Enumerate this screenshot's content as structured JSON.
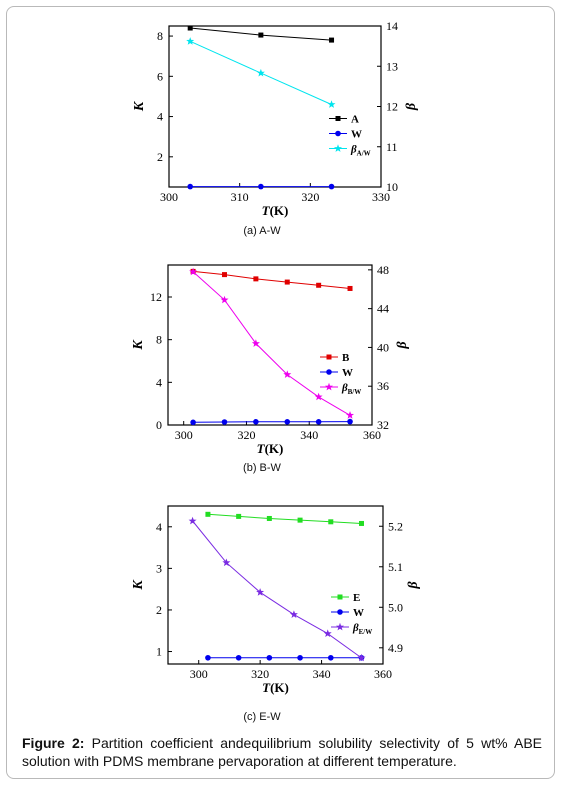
{
  "chart_data": [
    {
      "type": "line",
      "x": [
        303,
        313,
        323
      ],
      "xlabel_italic": "T",
      "xlabel_unit": "(K)",
      "ylabel_left": "K",
      "ylabel_right": "β",
      "xlim": [
        300,
        330
      ],
      "xticks": [
        "300",
        "310",
        "320",
        "330"
      ],
      "ylim_left": [
        0.5,
        8.5
      ],
      "yticks_left": [
        "2",
        "4",
        "6",
        "8"
      ],
      "ylim_right": [
        10,
        14
      ],
      "yticks_right": [
        "10",
        "11",
        "12",
        "13",
        "14"
      ],
      "series": [
        {
          "name": "A",
          "axis": "left",
          "color": "#000000",
          "marker": "square",
          "values": [
            8.4,
            8.05,
            7.8
          ]
        },
        {
          "name": "W",
          "axis": "left",
          "color": "#0000ee",
          "marker": "circle",
          "values": [
            0.52,
            0.52,
            0.52
          ]
        },
        {
          "name": "β",
          "name_sub": "A/W",
          "axis": "right",
          "color": "#00e5ee",
          "marker": "star",
          "values": [
            13.62,
            12.83,
            12.05
          ]
        }
      ],
      "subtitle": "(a) A-W"
    },
    {
      "type": "line",
      "x": [
        303,
        313,
        323,
        333,
        343,
        353
      ],
      "xlabel_italic": "T",
      "xlabel_unit": "(K)",
      "ylabel_left": "K",
      "ylabel_right": "β",
      "xlim": [
        295,
        360
      ],
      "xticks": [
        "300",
        "320",
        "340",
        "360"
      ],
      "ylim_left": [
        0,
        15
      ],
      "yticks_left": [
        "0",
        "4",
        "8",
        "12"
      ],
      "ylim_right": [
        32,
        48.5
      ],
      "yticks_right": [
        "32",
        "36",
        "40",
        "44",
        "48"
      ],
      "series": [
        {
          "name": "B",
          "axis": "left",
          "color": "#e00000",
          "marker": "square",
          "values": [
            14.4,
            14.1,
            13.7,
            13.4,
            13.1,
            12.8
          ]
        },
        {
          "name": "W",
          "axis": "left",
          "color": "#0000ee",
          "marker": "circle",
          "values": [
            0.25,
            0.28,
            0.3,
            0.3,
            0.3,
            0.32
          ]
        },
        {
          "name": "β",
          "name_sub": "B/W",
          "axis": "right",
          "color": "#ee00ee",
          "marker": "star",
          "values": [
            47.8,
            44.9,
            40.4,
            37.2,
            34.9,
            33.0
          ]
        }
      ],
      "subtitle": "(b) B-W"
    },
    {
      "type": "line",
      "x": [
        298,
        303,
        308,
        313,
        320,
        323,
        330,
        333,
        340,
        343,
        353
      ],
      "xlabel_italic": "T",
      "xlabel_unit": "(K)",
      "ylabel_left": "K",
      "ylabel_right": "β",
      "xlim": [
        290,
        360
      ],
      "xticks": [
        "300",
        "320",
        "340",
        "360"
      ],
      "ylim_left": [
        0.7,
        4.5
      ],
      "yticks_left": [
        "1",
        "2",
        "3",
        "4"
      ],
      "ylim_right": [
        4.86,
        5.25
      ],
      "yticks_right": [
        "4.9",
        "5.0",
        "5.1",
        "5.2"
      ],
      "series": [
        {
          "name": "E",
          "axis": "left",
          "color": "#22dd22",
          "marker": "square",
          "x": [
            303,
            313,
            323,
            333,
            343,
            353
          ],
          "values": [
            4.3,
            4.25,
            4.2,
            4.16,
            4.12,
            4.08
          ]
        },
        {
          "name": "W",
          "axis": "left",
          "color": "#0000ee",
          "marker": "circle",
          "x": [
            303,
            313,
            323,
            333,
            343,
            353
          ],
          "values": [
            0.85,
            0.85,
            0.85,
            0.85,
            0.85,
            0.85
          ]
        },
        {
          "name": "β",
          "name_sub": "E/W",
          "axis": "right",
          "color": "#7a2be2",
          "marker": "star",
          "x": [
            298,
            309,
            320,
            331,
            342,
            353
          ],
          "values": [
            5.213,
            5.11,
            5.037,
            4.982,
            4.935,
            4.875
          ]
        }
      ],
      "subtitle": "(c) E-W"
    }
  ],
  "caption": {
    "label": "Figure 2:",
    "text": " Partition coefficient andequilibrium solubility selectivity of 5 wt% ABE solution with PDMS membrane pervaporation at different temperature."
  }
}
